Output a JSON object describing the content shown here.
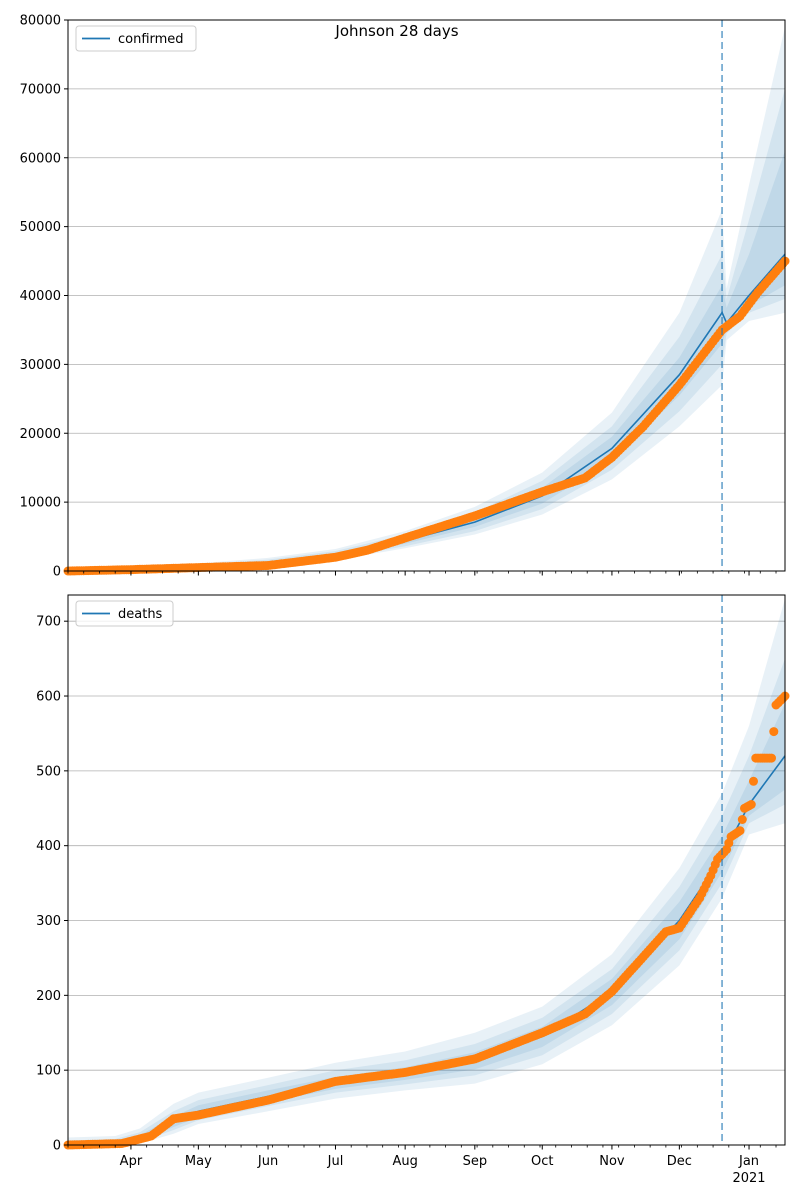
{
  "figure": {
    "title": "Johnson 28 days"
  },
  "colors": {
    "model_line": "#1f77b4",
    "observed": "#ff7f0e",
    "band": "#1f77b4",
    "vline": "#1f77b4",
    "grid": "#b0b0b0"
  },
  "x_axis": {
    "ticks": [
      {
        "date": "2020-04-01",
        "label": "Apr"
      },
      {
        "date": "2020-05-01",
        "label": "May"
      },
      {
        "date": "2020-06-01",
        "label": "Jun"
      },
      {
        "date": "2020-07-01",
        "label": "Jul"
      },
      {
        "date": "2020-08-01",
        "label": "Aug"
      },
      {
        "date": "2020-09-01",
        "label": "Sep"
      },
      {
        "date": "2020-10-01",
        "label": "Oct"
      },
      {
        "date": "2020-11-01",
        "label": "Nov"
      },
      {
        "date": "2020-12-01",
        "label": "Dec"
      },
      {
        "date": "2021-01-01",
        "label": "Jan",
        "sublabel": "2021"
      }
    ],
    "range": [
      "2020-03-04",
      "2021-01-17"
    ]
  },
  "chart_data": [
    {
      "type": "line",
      "legend": [
        "confirmed"
      ],
      "legend_position": "upper-left",
      "grid": "horizontal",
      "ylim": [
        0,
        80000
      ],
      "yticks": [
        "0",
        "10000",
        "20000",
        "30000",
        "40000",
        "50000",
        "60000",
        "70000",
        "80000"
      ],
      "ytick_values": [
        0,
        10000,
        20000,
        30000,
        40000,
        50000,
        60000,
        70000,
        80000
      ],
      "vline_date": "2020-12-20",
      "series": [
        {
          "name": "confirmed",
          "kind": "model",
          "points": [
            [
              "2020-03-04",
              0
            ],
            [
              "2020-04-01",
              300
            ],
            [
              "2020-05-01",
              650
            ],
            [
              "2020-06-01",
              1150
            ],
            [
              "2020-07-01",
              2300
            ],
            [
              "2020-08-01",
              4400
            ],
            [
              "2020-09-01",
              7100
            ],
            [
              "2020-10-01",
              10900
            ],
            [
              "2020-11-01",
              17800
            ],
            [
              "2020-12-01",
              28500
            ],
            [
              "2020-12-20",
              37500
            ],
            [
              "2020-12-22",
              36000
            ],
            [
              "2021-01-01",
              40000
            ],
            [
              "2021-01-17",
              46000
            ]
          ]
        },
        {
          "kind": "observed",
          "points": [
            [
              "2020-03-04",
              0
            ],
            [
              "2020-04-01",
              200
            ],
            [
              "2020-05-01",
              500
            ],
            [
              "2020-06-01",
              800
            ],
            [
              "2020-07-01",
              2000
            ],
            [
              "2020-07-15",
              3000
            ],
            [
              "2020-08-01",
              4800
            ],
            [
              "2020-09-01",
              8000
            ],
            [
              "2020-10-01",
              11500
            ],
            [
              "2020-10-20",
              13500
            ],
            [
              "2020-11-01",
              16500
            ],
            [
              "2020-11-15",
              21000
            ],
            [
              "2020-12-01",
              27000
            ],
            [
              "2020-12-20",
              35000
            ],
            [
              "2020-12-28",
              37000
            ],
            [
              "2021-01-05",
              40500
            ],
            [
              "2021-01-17",
              45000
            ]
          ]
        }
      ],
      "bands": {
        "dates": [
          "2020-03-04",
          "2020-04-01",
          "2020-05-01",
          "2020-06-01",
          "2020-07-01",
          "2020-08-01",
          "2020-09-01",
          "2020-10-01",
          "2020-11-01",
          "2020-12-01",
          "2020-12-20",
          "2020-12-22",
          "2021-01-01",
          "2021-01-17"
        ],
        "levels": [
          {
            "upper": [
              200,
              550,
              1100,
              1900,
              3200,
              5800,
              9300,
              14300,
              23000,
              37500,
              52500,
              41000,
              56000,
              79000
            ],
            "lower": [
              0,
              150,
              350,
              700,
              1600,
              3300,
              5300,
              8200,
              13300,
              21000,
              27000,
              33500,
              36300,
              37500
            ]
          },
          {
            "upper": [
              150,
              450,
              950,
              1650,
              2900,
              5300,
              8500,
              13100,
              21000,
              34000,
              46000,
              39500,
              51000,
              70000
            ],
            "lower": [
              0,
              200,
              450,
              850,
              1800,
              3600,
              5800,
              9000,
              14700,
              23200,
              30000,
              34500,
              37500,
              39500
            ]
          },
          {
            "upper": [
              100,
              400,
              850,
              1450,
              2650,
              4900,
              7900,
              12100,
              19500,
              31000,
              41500,
              38200,
              46000,
              61000
            ],
            "lower": [
              0,
              250,
              550,
              1000,
              2000,
              3950,
              6400,
              9800,
              16000,
              25500,
              33000,
              35200,
              38500,
              41500
            ]
          }
        ]
      }
    },
    {
      "type": "line",
      "legend": [
        "deaths"
      ],
      "legend_position": "upper-left",
      "grid": "horizontal",
      "ylim": [
        0,
        735
      ],
      "yticks": [
        "0",
        "100",
        "200",
        "300",
        "400",
        "500",
        "600",
        "700"
      ],
      "ytick_values": [
        0,
        100,
        200,
        300,
        400,
        500,
        600,
        700
      ],
      "vline_date": "2020-12-20",
      "series": [
        {
          "name": "deaths",
          "kind": "model",
          "points": [
            [
              "2020-03-04",
              0
            ],
            [
              "2020-03-25",
              2
            ],
            [
              "2020-04-05",
              8
            ],
            [
              "2020-04-20",
              30
            ],
            [
              "2020-05-01",
              45
            ],
            [
              "2020-06-01",
              65
            ],
            [
              "2020-07-01",
              82
            ],
            [
              "2020-08-01",
              95
            ],
            [
              "2020-09-01",
              113
            ],
            [
              "2020-10-01",
              145
            ],
            [
              "2020-11-01",
              205
            ],
            [
              "2020-12-01",
              300
            ],
            [
              "2020-12-20",
              385
            ],
            [
              "2021-01-01",
              455
            ],
            [
              "2021-01-17",
              520
            ]
          ]
        },
        {
          "kind": "observed",
          "points": [
            [
              "2020-03-04",
              0
            ],
            [
              "2020-03-28",
              2
            ],
            [
              "2020-04-10",
              12
            ],
            [
              "2020-04-20",
              35
            ],
            [
              "2020-05-01",
              40
            ],
            [
              "2020-06-01",
              60
            ],
            [
              "2020-07-01",
              85
            ],
            [
              "2020-08-01",
              97
            ],
            [
              "2020-09-01",
              115
            ],
            [
              "2020-10-01",
              150
            ],
            [
              "2020-10-20",
              175
            ],
            [
              "2020-11-01",
              205
            ],
            [
              "2020-11-10",
              235
            ],
            [
              "2020-11-25",
              285
            ],
            [
              "2020-12-01",
              290
            ],
            [
              "2020-12-10",
              330
            ],
            [
              "2020-12-15",
              360
            ],
            [
              "2020-12-18",
              382
            ],
            [
              "2020-12-22",
              395
            ],
            [
              "2020-12-24",
              412
            ],
            [
              "2020-12-28",
              420
            ],
            [
              "2020-12-30",
              450
            ],
            [
              "2021-01-02",
              455
            ],
            [
              "2021-01-04",
              517
            ],
            [
              "2021-01-11",
              517
            ],
            [
              "2021-01-13",
              588
            ],
            [
              "2021-01-17",
              600
            ]
          ]
        }
      ],
      "bands": {
        "dates": [
          "2020-03-04",
          "2020-03-25",
          "2020-04-05",
          "2020-04-20",
          "2020-05-01",
          "2020-06-01",
          "2020-07-01",
          "2020-08-01",
          "2020-09-01",
          "2020-10-01",
          "2020-11-01",
          "2020-12-01",
          "2020-12-20",
          "2021-01-01",
          "2021-01-17"
        ],
        "levels": [
          {
            "upper": [
              10,
              12,
              22,
              55,
              70,
              90,
              110,
              125,
              150,
              185,
              255,
              370,
              470,
              560,
              730
            ],
            "lower": [
              0,
              0,
              2,
              15,
              28,
              45,
              62,
              73,
              82,
              108,
              160,
              240,
              330,
              415,
              430
            ]
          },
          {
            "upper": [
              6,
              8,
              17,
              45,
              60,
              80,
              100,
              113,
              135,
              170,
              235,
              345,
              440,
              520,
              650
            ],
            "lower": [
              0,
              0,
              4,
              20,
              33,
              52,
              70,
              81,
              93,
              120,
              175,
              260,
              350,
              430,
              455
            ]
          },
          {
            "upper": [
              3,
              5,
              13,
              38,
              53,
              73,
              91,
              104,
              124,
              158,
              222,
              325,
              413,
              487,
              590
            ],
            "lower": [
              0,
              0,
              5,
              24,
              37,
              57,
              75,
              87,
              101,
              131,
              187,
              275,
              365,
              440,
              475
            ]
          }
        ]
      }
    }
  ]
}
